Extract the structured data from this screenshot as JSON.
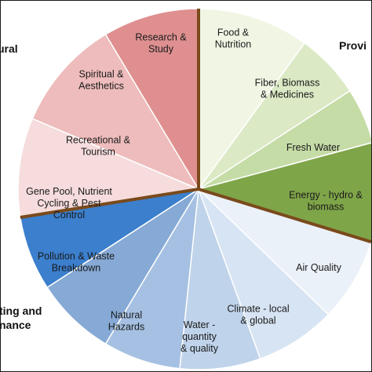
{
  "groups": [
    {
      "id": "cultural",
      "text": "ural"
    },
    {
      "id": "provisioning",
      "text": "Provi"
    },
    {
      "id": "supporting",
      "lines": [
        "ting and",
        "nance"
      ]
    }
  ],
  "segments": [
    {
      "name": "food-nutrition",
      "lines": [
        "Food &",
        "Nutrition"
      ],
      "color": "#f1f6e4"
    },
    {
      "name": "fiber-biomass-medicines",
      "lines": [
        "Fiber, Biomass",
        "& Medicines"
      ],
      "color": "#dbe9c5"
    },
    {
      "name": "fresh-water",
      "lines": [
        "Fresh Water"
      ],
      "color": "#c6dca7"
    },
    {
      "name": "energy-hydro-biomass",
      "lines": [
        "Energy - hydro &",
        "biomass"
      ],
      "color": "#7fa549"
    },
    {
      "name": "air-quality",
      "lines": [
        "Air Quality"
      ],
      "color": "#ebf1f9"
    },
    {
      "name": "climate-local-global",
      "lines": [
        "Climate - local",
        "& global"
      ],
      "color": "#d7e4f3"
    },
    {
      "name": "water-quantity-quality",
      "lines": [
        "Water -",
        "quantity",
        "& quality"
      ],
      "color": "#bfd3ea"
    },
    {
      "name": "natural-hazards",
      "lines": [
        "Natural",
        "Hazards"
      ],
      "color": "#a5c0e2"
    },
    {
      "name": "pollution-waste-breakdown",
      "lines": [
        "Pollution & Waste",
        "Breakdown"
      ],
      "color": "#86a9d5"
    },
    {
      "name": "gene-pool-nutrient-cycling",
      "lines": [
        "Gene Pool, Nutrient",
        "Cycling & Pest",
        "Control"
      ],
      "color": "#3b7fcd"
    },
    {
      "name": "recreational-tourism",
      "lines": [
        "Recreational &",
        "Tourism"
      ],
      "color": "#f6dcdc"
    },
    {
      "name": "spiritual-aesthetics",
      "lines": [
        "Spiritual &",
        "Aesthetics"
      ],
      "color": "#eebcbc"
    },
    {
      "name": "research-study",
      "lines": [
        "Research &",
        "Study"
      ],
      "color": "#df8f8f"
    }
  ],
  "dividers": {
    "color": "#7a4a1c"
  }
}
